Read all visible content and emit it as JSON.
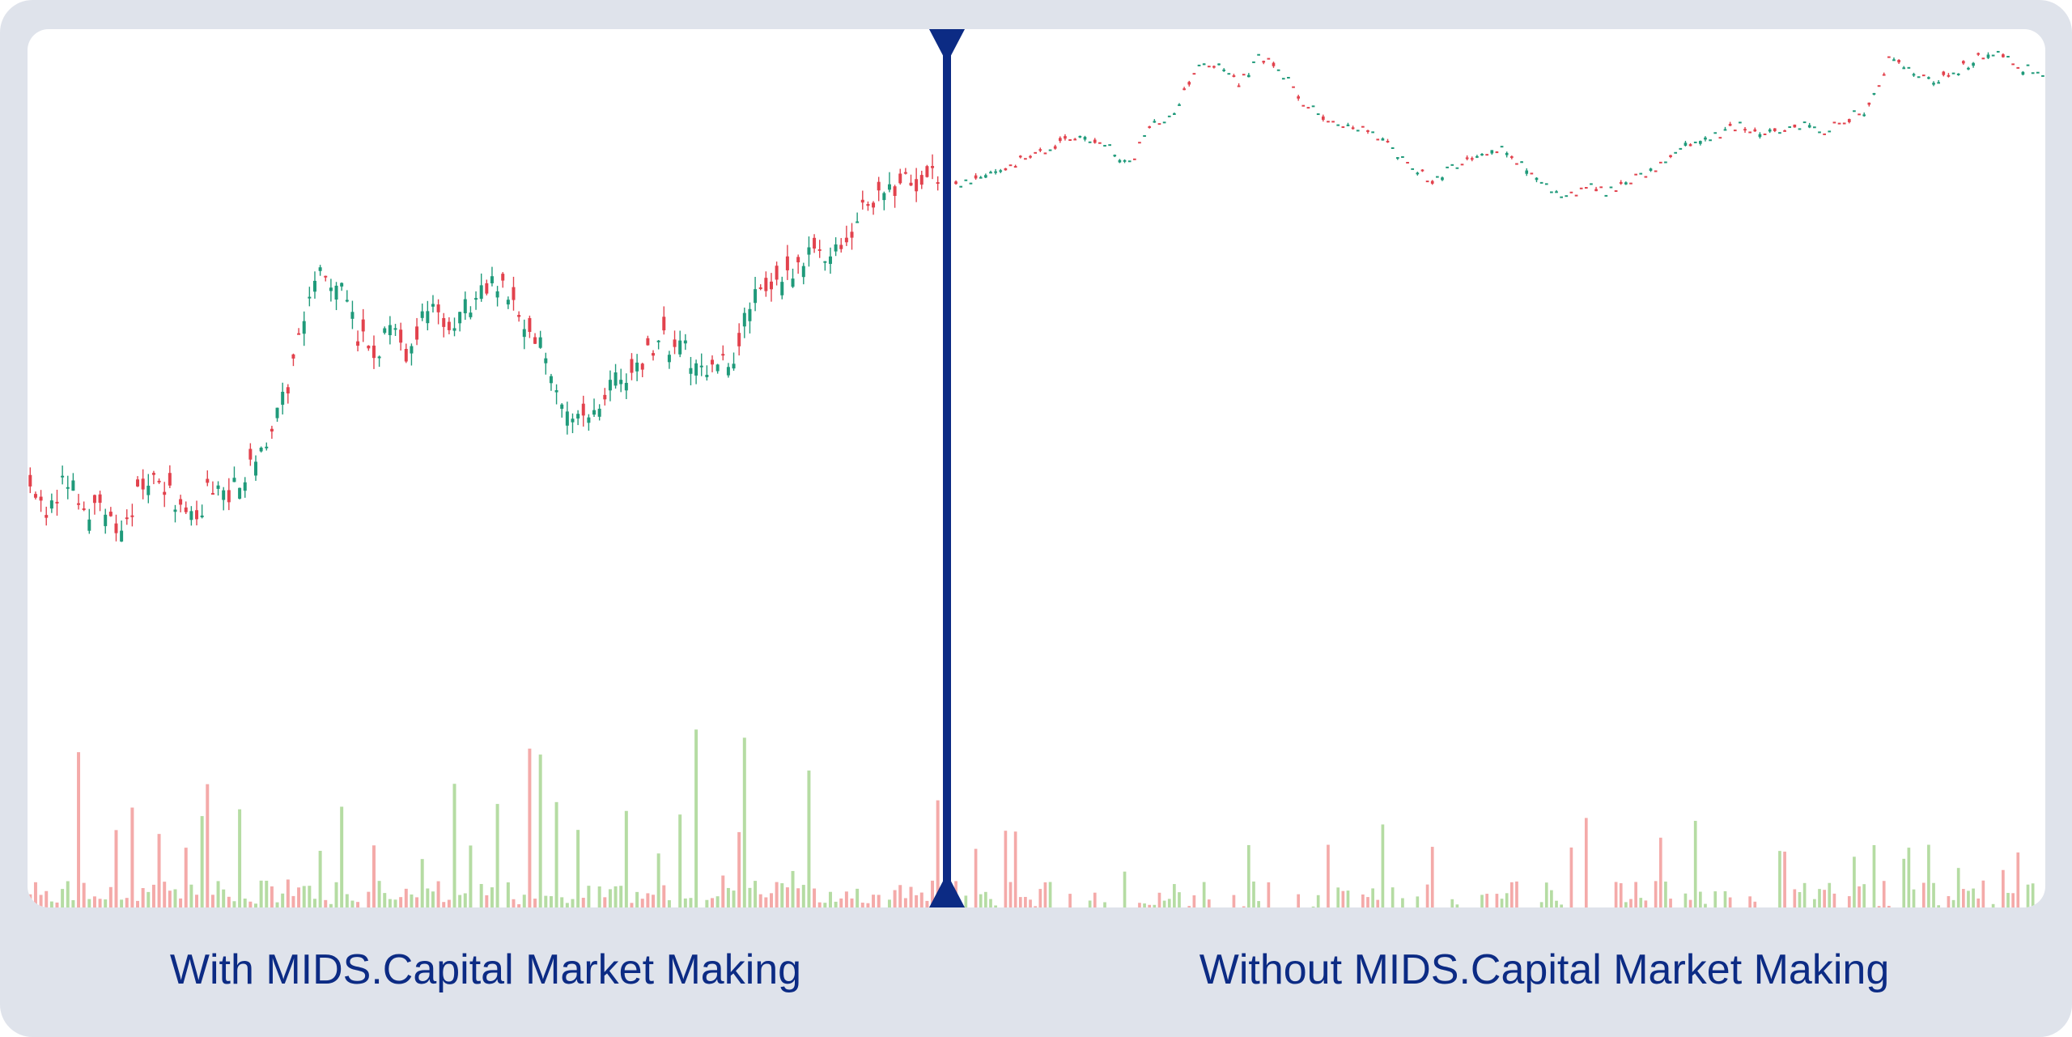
{
  "captions": {
    "left": "With MIDS.Capital Market Making",
    "right": "Without MIDS.Capital Market Making"
  },
  "colors": {
    "frame": "#dfe3eb",
    "panel": "#ffffff",
    "up": "#1f9a7a",
    "down": "#e2424d",
    "volume_up": "#b5dca3",
    "volume_down": "#f4aaa9",
    "divider": "#0c2b84",
    "caption": "#0c2b84"
  },
  "chart_data": {
    "type": "candlestick",
    "title": "",
    "xlabel": "",
    "ylabel": "",
    "grid": false,
    "axes_visible": false,
    "legend": "none",
    "divider_label_left": "With MIDS.Capital Market Making",
    "divider_label_right": "Without MIDS.Capital Market Making",
    "price_range": [
      0,
      100
    ],
    "volume_range": [
      0,
      100
    ],
    "with_market_making": {
      "close_path": [
        [
          0,
          22
        ],
        [
          2,
          18
        ],
        [
          4,
          24
        ],
        [
          6,
          17
        ],
        [
          8,
          20
        ],
        [
          10,
          14
        ],
        [
          12,
          21
        ],
        [
          14,
          26
        ],
        [
          16,
          18
        ],
        [
          18,
          16
        ],
        [
          20,
          23
        ],
        [
          22,
          20
        ],
        [
          24,
          26
        ],
        [
          26,
          28
        ],
        [
          28,
          38
        ],
        [
          30,
          52
        ],
        [
          32,
          61
        ],
        [
          34,
          58
        ],
        [
          36,
          49
        ],
        [
          38,
          46
        ],
        [
          40,
          50
        ],
        [
          42,
          45
        ],
        [
          44,
          55
        ],
        [
          46,
          49
        ],
        [
          48,
          54
        ],
        [
          50,
          57
        ],
        [
          52,
          59
        ],
        [
          54,
          52
        ],
        [
          56,
          48
        ],
        [
          58,
          38
        ],
        [
          60,
          33
        ],
        [
          62,
          37
        ],
        [
          64,
          40
        ],
        [
          66,
          42
        ],
        [
          68,
          45
        ],
        [
          70,
          48
        ],
        [
          72,
          46
        ],
        [
          74,
          43
        ],
        [
          76,
          44
        ],
        [
          78,
          46
        ],
        [
          80,
          59
        ],
        [
          82,
          56
        ],
        [
          84,
          61
        ],
        [
          86,
          64
        ],
        [
          88,
          63
        ],
        [
          90,
          65
        ],
        [
          92,
          71
        ],
        [
          94,
          74
        ],
        [
          96,
          76
        ],
        [
          100,
          77
        ]
      ]
    },
    "without_market_making": {
      "close_path": [
        [
          0,
          75
        ],
        [
          4,
          78
        ],
        [
          8,
          81
        ],
        [
          10,
          83
        ],
        [
          12,
          84
        ],
        [
          14,
          82
        ],
        [
          16,
          79
        ],
        [
          18,
          86
        ],
        [
          20,
          88
        ],
        [
          22,
          96
        ],
        [
          24,
          97
        ],
        [
          26,
          93
        ],
        [
          28,
          98
        ],
        [
          30,
          95
        ],
        [
          32,
          90
        ],
        [
          34,
          87
        ],
        [
          36,
          86
        ],
        [
          38,
          85
        ],
        [
          40,
          82
        ],
        [
          42,
          78
        ],
        [
          44,
          76
        ],
        [
          46,
          79
        ],
        [
          48,
          80
        ],
        [
          50,
          82
        ],
        [
          52,
          79
        ],
        [
          54,
          76
        ],
        [
          56,
          73
        ],
        [
          58,
          75
        ],
        [
          60,
          74
        ],
        [
          62,
          76
        ],
        [
          64,
          78
        ],
        [
          66,
          81
        ],
        [
          68,
          83
        ],
        [
          70,
          84
        ],
        [
          72,
          86
        ],
        [
          74,
          84
        ],
        [
          76,
          85
        ],
        [
          78,
          86
        ],
        [
          80,
          85
        ],
        [
          82,
          87
        ],
        [
          84,
          89
        ],
        [
          86,
          98
        ],
        [
          88,
          95
        ],
        [
          90,
          94
        ],
        [
          92,
          95
        ],
        [
          94,
          98
        ],
        [
          96,
          99
        ],
        [
          98,
          96
        ],
        [
          100,
          95
        ]
      ]
    }
  }
}
